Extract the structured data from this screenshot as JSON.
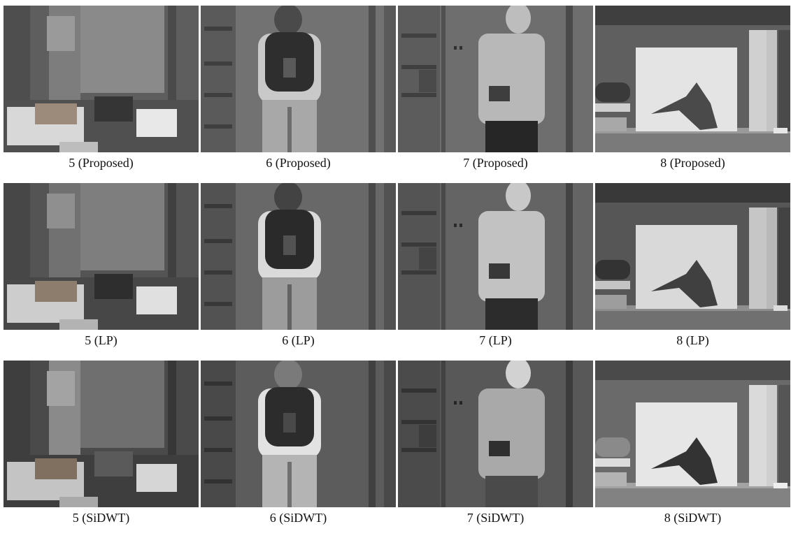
{
  "rows": [
    {
      "method": "Proposed",
      "cells": [
        {
          "caption": "5 (Proposed)",
          "scene": "office-desk"
        },
        {
          "caption": "6 (Proposed)",
          "scene": "person-backpack"
        },
        {
          "caption": "7 (Proposed)",
          "scene": "person-shirt"
        },
        {
          "caption": "8 (Proposed)",
          "scene": "shelf-box"
        }
      ]
    },
    {
      "method": "LP",
      "cells": [
        {
          "caption": "5 (LP)",
          "scene": "office-desk"
        },
        {
          "caption": "6 (LP)",
          "scene": "person-backpack"
        },
        {
          "caption": "7 (LP)",
          "scene": "person-shirt"
        },
        {
          "caption": "8 (LP)",
          "scene": "shelf-box"
        }
      ]
    },
    {
      "method": "SiDWT",
      "cells": [
        {
          "caption": "5 (SiDWT)",
          "scene": "office-desk"
        },
        {
          "caption": "6 (SiDWT)",
          "scene": "person-backpack"
        },
        {
          "caption": "7 (SiDWT)",
          "scene": "person-shirt"
        },
        {
          "caption": "8 (SiDWT)",
          "scene": "shelf-box"
        }
      ]
    }
  ]
}
